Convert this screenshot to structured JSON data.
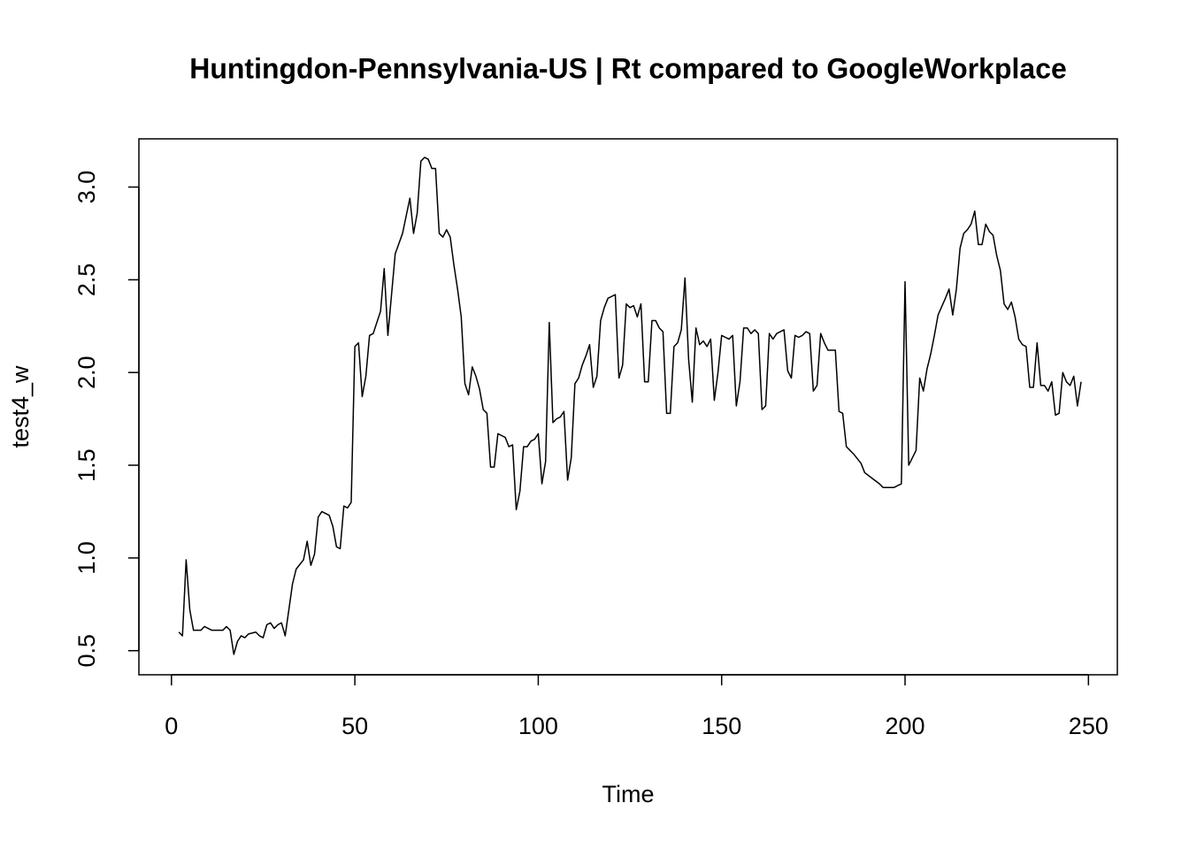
{
  "chart_data": {
    "type": "line",
    "title": "Huntingdon-Pennsylvania-US | Rt compared to GoogleWorkplace",
    "xlabel": "Time",
    "ylabel": "test4_w",
    "x": [
      2,
      3,
      4,
      5,
      6,
      8,
      9,
      11,
      14,
      15,
      16,
      17,
      18,
      19,
      20,
      21,
      23,
      24,
      25,
      26,
      27,
      28,
      29,
      30,
      31,
      32,
      33,
      34,
      36,
      37,
      38,
      39,
      40,
      41,
      43,
      44,
      45,
      46,
      47,
      48,
      49,
      50,
      51,
      52,
      53,
      54,
      55,
      57,
      58,
      59,
      60,
      61,
      63,
      65,
      66,
      67,
      68,
      69,
      70,
      71,
      72,
      73,
      74,
      75,
      76,
      77,
      78,
      79,
      80,
      81,
      82,
      83,
      84,
      85,
      86,
      87,
      88,
      89,
      90,
      91,
      92,
      93,
      94,
      95,
      96,
      97,
      98,
      99,
      100,
      101,
      102,
      103,
      104,
      105,
      106,
      107,
      108,
      109,
      110,
      111,
      112,
      113,
      114,
      115,
      116,
      117,
      118,
      119,
      121,
      122,
      123,
      124,
      125,
      126,
      127,
      128,
      129,
      130,
      131,
      132,
      133,
      134,
      135,
      136,
      137,
      138,
      139,
      140,
      141,
      142,
      143,
      144,
      145,
      146,
      147,
      148,
      149,
      150,
      151,
      152,
      153,
      154,
      155,
      156,
      157,
      158,
      159,
      160,
      161,
      162,
      163,
      164,
      165,
      166,
      167,
      168,
      169,
      170,
      171,
      172,
      173,
      174,
      175,
      176,
      177,
      178,
      179,
      181,
      182,
      183,
      184,
      186,
      188,
      189,
      191,
      193,
      194,
      197,
      199,
      200,
      201,
      203,
      204,
      205,
      206,
      207,
      208,
      209,
      211,
      212,
      213,
      214,
      215,
      216,
      217,
      218,
      219,
      220,
      221,
      222,
      223,
      224,
      225,
      226,
      227,
      228,
      229,
      230,
      231,
      232,
      233,
      234,
      235,
      236,
      237,
      238,
      239,
      240,
      241,
      242,
      243,
      244,
      245,
      246,
      247,
      248
    ],
    "values": [
      0.6,
      0.58,
      0.99,
      0.72,
      0.61,
      0.61,
      0.63,
      0.61,
      0.61,
      0.63,
      0.61,
      0.48,
      0.55,
      0.58,
      0.57,
      0.59,
      0.6,
      0.58,
      0.57,
      0.64,
      0.65,
      0.62,
      0.64,
      0.65,
      0.58,
      0.72,
      0.86,
      0.94,
      0.99,
      1.09,
      0.96,
      1.02,
      1.22,
      1.25,
      1.23,
      1.17,
      1.06,
      1.05,
      1.28,
      1.27,
      1.3,
      2.14,
      2.16,
      1.87,
      1.98,
      2.2,
      2.21,
      2.33,
      2.56,
      2.2,
      2.42,
      2.64,
      2.75,
      2.94,
      2.75,
      2.86,
      3.14,
      3.16,
      3.15,
      3.1,
      3.1,
      2.75,
      2.73,
      2.77,
      2.73,
      2.58,
      2.45,
      2.3,
      1.94,
      1.88,
      2.03,
      1.98,
      1.91,
      1.8,
      1.78,
      1.49,
      1.49,
      1.67,
      1.66,
      1.65,
      1.6,
      1.61,
      1.26,
      1.36,
      1.6,
      1.6,
      1.63,
      1.64,
      1.67,
      1.4,
      1.52,
      2.27,
      1.73,
      1.75,
      1.76,
      1.79,
      1.42,
      1.54,
      1.94,
      1.97,
      2.04,
      2.09,
      2.15,
      1.92,
      1.98,
      2.28,
      2.35,
      2.4,
      2.42,
      1.97,
      2.04,
      2.37,
      2.35,
      2.36,
      2.3,
      2.37,
      1.95,
      1.95,
      2.28,
      2.28,
      2.24,
      2.22,
      1.78,
      1.78,
      2.14,
      2.16,
      2.23,
      2.51,
      2.07,
      1.84,
      2.24,
      2.15,
      2.17,
      2.14,
      2.18,
      1.85,
      2.0,
      2.2,
      2.19,
      2.18,
      2.2,
      1.82,
      1.95,
      2.24,
      2.24,
      2.21,
      2.23,
      2.21,
      1.8,
      1.82,
      2.21,
      2.18,
      2.21,
      2.22,
      2.23,
      2.01,
      1.97,
      2.2,
      2.19,
      2.2,
      2.22,
      2.21,
      1.9,
      1.93,
      2.21,
      2.16,
      2.12,
      2.12,
      1.79,
      1.78,
      1.6,
      1.56,
      1.51,
      1.46,
      1.43,
      1.4,
      1.38,
      1.38,
      1.4,
      2.49,
      1.5,
      1.58,
      1.97,
      1.9,
      2.02,
      2.1,
      2.2,
      2.31,
      2.4,
      2.45,
      2.31,
      2.45,
      2.67,
      2.75,
      2.77,
      2.8,
      2.87,
      2.69,
      2.69,
      2.8,
      2.76,
      2.74,
      2.63,
      2.55,
      2.37,
      2.34,
      2.38,
      2.3,
      2.18,
      2.15,
      2.14,
      1.92,
      1.92,
      2.16,
      1.93,
      1.93,
      1.9,
      1.95,
      1.77,
      1.78,
      2.0,
      1.95,
      1.93,
      1.98,
      1.82,
      1.95
    ],
    "color": "#000000",
    "xlim": [
      -8.88,
      257.88
    ],
    "ylim": [
      0.37,
      3.26
    ],
    "xticks": [
      0,
      50,
      100,
      150,
      200,
      250
    ],
    "yticks": [
      0.5,
      {
        "value": 1,
        "label": "1.0"
      },
      1.5,
      {
        "value": 2,
        "label": "2.0"
      },
      2.5,
      {
        "value": 3,
        "label": "3.0"
      }
    ],
    "grid": false
  }
}
